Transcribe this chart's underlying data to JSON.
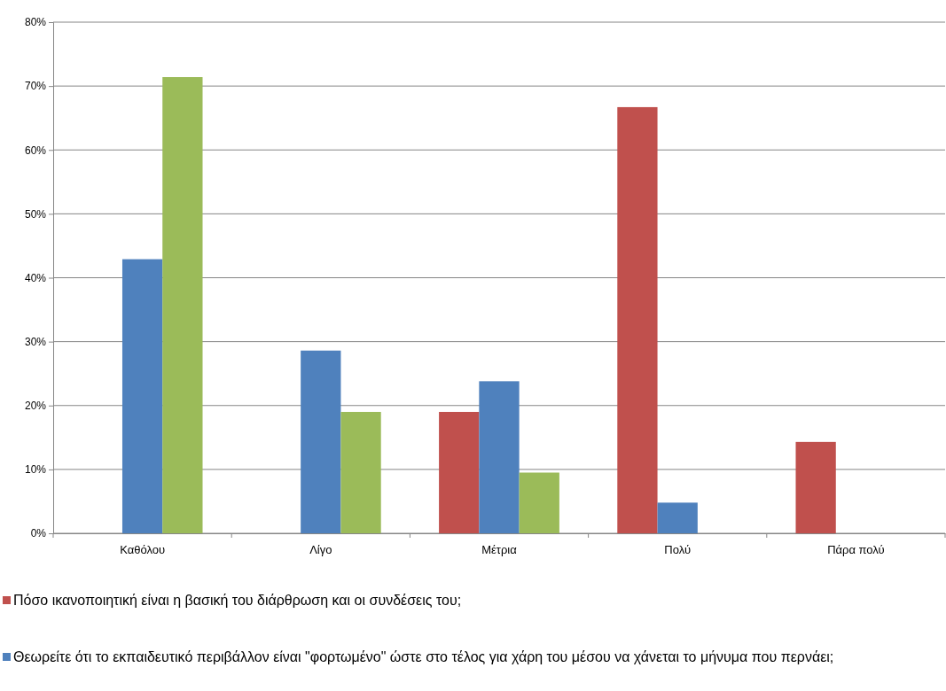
{
  "chart_data": {
    "type": "bar",
    "categories": [
      "Καθόλου",
      "Λίγο",
      "Μέτρια",
      "Πολύ",
      "Πάρα πολύ"
    ],
    "series": [
      {
        "name": "Πόσο ικανοποιητική είναι η βασική του διάρθρωση και οι συνδέσεις του;",
        "color": "#c0504d",
        "values": [
          0,
          0,
          19,
          66.7,
          14.3
        ]
      },
      {
        "name": "Θεωρείτε ότι το εκπαιδευτικό περιβάλλον είναι \"φορτωμένο\"  ώστε στο τέλος για χάρη του μέσου να χάνεται το μήνυμα που περνάει;",
        "color": "#4f81bd",
        "values": [
          42.9,
          28.6,
          23.8,
          4.8,
          0
        ]
      },
      {
        "color": "#9bbb59",
        "values": [
          71.4,
          19,
          9.5,
          0,
          0
        ]
      }
    ],
    "ylim": [
      0,
      80
    ],
    "yticks": [
      {
        "value": 0,
        "label": "0%"
      },
      {
        "value": 10,
        "label": "10%"
      },
      {
        "value": 20,
        "label": "20%"
      },
      {
        "value": 30,
        "label": "30%"
      },
      {
        "value": 40,
        "label": "40%"
      },
      {
        "value": 50,
        "label": "50%"
      },
      {
        "value": 60,
        "label": "60%"
      },
      {
        "value": 70,
        "label": "70%"
      },
      {
        "value": 80,
        "label": "80%"
      }
    ],
    "grid": "y",
    "legend": "bottom"
  }
}
